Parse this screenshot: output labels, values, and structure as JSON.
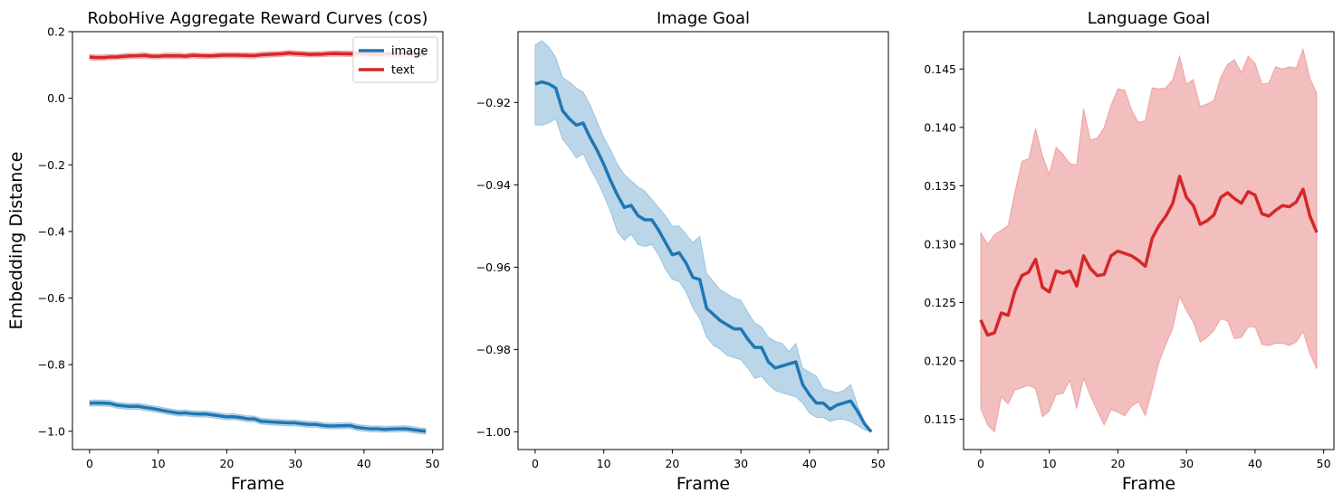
{
  "colors": {
    "image": "#1f77b4",
    "text": "#d62728",
    "image_band": "#1f77b4",
    "text_band": "#d62728"
  },
  "chart_data": [
    {
      "type": "line",
      "title": "RoboHive Aggregate Reward Curves (cos)",
      "xlabel": "Frame",
      "ylabel": "Embedding Distance",
      "xlim": [
        -2.5,
        51.5
      ],
      "ylim": [
        -1.055,
        0.2
      ],
      "xticks": [
        0,
        10,
        20,
        30,
        40,
        50
      ],
      "yticks": [
        -1.0,
        -0.8,
        -0.6,
        -0.4,
        -0.2,
        0.0,
        0.2
      ],
      "ytick_labels": [
        "−1.0",
        "−0.8",
        "−0.6",
        "−0.4",
        "−0.2",
        "0.0",
        "0.2"
      ],
      "legend": {
        "placement": "upper-right",
        "entries": [
          "image",
          "text"
        ]
      },
      "series": [
        {
          "name": "image",
          "color_key": "image",
          "x_start": 0,
          "mean": [
            -0.9155,
            -0.915,
            -0.9155,
            -0.9165,
            -0.922,
            -0.924,
            -0.9255,
            -0.925,
            -0.9285,
            -0.9315,
            -0.935,
            -0.939,
            -0.9425,
            -0.9455,
            -0.945,
            -0.9475,
            -0.9485,
            -0.9485,
            -0.951,
            -0.954,
            -0.957,
            -0.9565,
            -0.959,
            -0.9625,
            -0.963,
            -0.97,
            -0.9715,
            -0.973,
            -0.974,
            -0.975,
            -0.975,
            -0.9775,
            -0.9795,
            -0.9795,
            -0.983,
            -0.9845,
            -0.984,
            -0.9835,
            -0.983,
            -0.9885,
            -0.991,
            -0.993,
            -0.993,
            -0.9945,
            -0.9935,
            -0.993,
            -0.9925,
            -0.995,
            -0.998,
            -1.0
          ],
          "band": 0.009
        },
        {
          "name": "text",
          "color_key": "text",
          "x_start": 0,
          "mean": [
            0.1235,
            0.1222,
            0.1224,
            0.1241,
            0.1239,
            0.126,
            0.1273,
            0.1276,
            0.1287,
            0.1263,
            0.1259,
            0.1277,
            0.1275,
            0.1277,
            0.1264,
            0.129,
            0.1279,
            0.1273,
            0.1274,
            0.129,
            0.1294,
            0.1292,
            0.129,
            0.1286,
            0.1281,
            0.1305,
            0.1316,
            0.1324,
            0.1335,
            0.1358,
            0.134,
            0.1333,
            0.1317,
            0.132,
            0.1325,
            0.134,
            0.1344,
            0.1339,
            0.1335,
            0.1345,
            0.1342,
            0.1326,
            0.1324,
            0.1329,
            0.1333,
            0.1332,
            0.1336,
            0.1347,
            0.1324,
            0.131
          ],
          "band": 0.008
        }
      ]
    },
    {
      "type": "line",
      "title": "Image Goal",
      "xlabel": "Frame",
      "ylabel": "",
      "xlim": [
        -2.5,
        51.5
      ],
      "ylim": [
        -1.0043,
        -0.9028
      ],
      "xticks": [
        0,
        10,
        20,
        30,
        40,
        50
      ],
      "yticks": [
        -1.0,
        -0.98,
        -0.96,
        -0.94,
        -0.92
      ],
      "ytick_labels": [
        "−1.00",
        "−0.98",
        "−0.96",
        "−0.94",
        "−0.92"
      ],
      "series": [
        {
          "name": "image",
          "color_key": "image",
          "x_start": 0,
          "mean": [
            -0.9155,
            -0.915,
            -0.9155,
            -0.9165,
            -0.922,
            -0.924,
            -0.9255,
            -0.925,
            -0.9285,
            -0.9315,
            -0.935,
            -0.939,
            -0.9425,
            -0.9455,
            -0.945,
            -0.9475,
            -0.9485,
            -0.9485,
            -0.951,
            -0.954,
            -0.957,
            -0.9565,
            -0.959,
            -0.9625,
            -0.963,
            -0.97,
            -0.9715,
            -0.973,
            -0.974,
            -0.975,
            -0.975,
            -0.9775,
            -0.9795,
            -0.9795,
            -0.983,
            -0.9845,
            -0.984,
            -0.9835,
            -0.983,
            -0.9885,
            -0.991,
            -0.993,
            -0.993,
            -0.9945,
            -0.9935,
            -0.993,
            -0.9925,
            -0.995,
            -0.998,
            -1.0
          ],
          "upper": [
            -0.906,
            -0.905,
            -0.9065,
            -0.909,
            -0.914,
            -0.915,
            -0.9165,
            -0.9175,
            -0.9205,
            -0.9245,
            -0.9285,
            -0.9315,
            -0.935,
            -0.9375,
            -0.939,
            -0.9405,
            -0.9415,
            -0.9435,
            -0.9455,
            -0.9475,
            -0.95,
            -0.95,
            -0.952,
            -0.954,
            -0.9525,
            -0.9615,
            -0.9635,
            -0.9655,
            -0.9665,
            -0.9675,
            -0.968,
            -0.971,
            -0.9735,
            -0.9745,
            -0.977,
            -0.978,
            -0.9785,
            -0.9805,
            -0.9785,
            -0.9845,
            -0.9855,
            -0.9865,
            -0.9895,
            -0.99,
            -0.9905,
            -0.99,
            -0.9885,
            -0.9935,
            -0.9975,
            -1.0
          ],
          "lower": [
            -0.9255,
            -0.9255,
            -0.925,
            -0.924,
            -0.929,
            -0.931,
            -0.9335,
            -0.9325,
            -0.936,
            -0.939,
            -0.9425,
            -0.9465,
            -0.9515,
            -0.9535,
            -0.952,
            -0.9545,
            -0.955,
            -0.9545,
            -0.957,
            -0.9605,
            -0.963,
            -0.9635,
            -0.966,
            -0.97,
            -0.9725,
            -0.977,
            -0.979,
            -0.98,
            -0.9815,
            -0.982,
            -0.9825,
            -0.9845,
            -0.987,
            -0.9865,
            -0.9885,
            -0.99,
            -0.9905,
            -0.991,
            -0.9915,
            -0.993,
            -0.9955,
            -0.9965,
            -0.9965,
            -0.9975,
            -0.997,
            -0.997,
            -0.9975,
            -0.9985,
            -0.9995,
            -1.0
          ]
        }
      ]
    },
    {
      "type": "line",
      "title": "Language Goal",
      "xlabel": "Frame",
      "ylabel": "",
      "xlim": [
        -2.5,
        51.5
      ],
      "ylim": [
        0.1124,
        0.1482
      ],
      "xticks": [
        0,
        10,
        20,
        30,
        40,
        50
      ],
      "yticks": [
        0.115,
        0.12,
        0.125,
        0.13,
        0.135,
        0.14,
        0.145
      ],
      "ytick_labels": [
        "0.115",
        "0.120",
        "0.125",
        "0.130",
        "0.135",
        "0.140",
        "0.145"
      ],
      "series": [
        {
          "name": "text",
          "color_key": "text",
          "x_start": 0,
          "mean": [
            0.1235,
            0.1222,
            0.1224,
            0.1241,
            0.1239,
            0.126,
            0.1273,
            0.1276,
            0.1287,
            0.1263,
            0.1259,
            0.1277,
            0.1275,
            0.1277,
            0.1264,
            0.129,
            0.1279,
            0.1273,
            0.1274,
            0.129,
            0.1294,
            0.1292,
            0.129,
            0.1286,
            0.1281,
            0.1305,
            0.1316,
            0.1324,
            0.1335,
            0.1358,
            0.134,
            0.1333,
            0.1317,
            0.132,
            0.1325,
            0.134,
            0.1344,
            0.1339,
            0.1335,
            0.1345,
            0.1342,
            0.1326,
            0.1324,
            0.1329,
            0.1333,
            0.1332,
            0.1336,
            0.1347,
            0.1324,
            0.131
          ],
          "upper": [
            0.131,
            0.13,
            0.1308,
            0.1312,
            0.1316,
            0.1345,
            0.1371,
            0.1373,
            0.1399,
            0.1376,
            0.136,
            0.1383,
            0.1377,
            0.1369,
            0.1368,
            0.1416,
            0.1389,
            0.1391,
            0.14,
            0.1419,
            0.1433,
            0.1432,
            0.1415,
            0.1404,
            0.1406,
            0.1434,
            0.1433,
            0.1434,
            0.1441,
            0.1461,
            0.1437,
            0.1441,
            0.1418,
            0.142,
            0.1423,
            0.1443,
            0.1454,
            0.1458,
            0.1447,
            0.1461,
            0.1455,
            0.1437,
            0.1438,
            0.1452,
            0.145,
            0.1452,
            0.1451,
            0.1467,
            0.1442,
            0.1429
          ],
          "lower": [
            0.1159,
            0.1145,
            0.1139,
            0.1169,
            0.1163,
            0.1175,
            0.1177,
            0.1179,
            0.1176,
            0.1152,
            0.1157,
            0.1171,
            0.1172,
            0.1183,
            0.1159,
            0.1185,
            0.117,
            0.1157,
            0.1145,
            0.1158,
            0.1156,
            0.1153,
            0.1161,
            0.1165,
            0.1153,
            0.1175,
            0.1199,
            0.1214,
            0.1228,
            0.1255,
            0.1243,
            0.1233,
            0.1216,
            0.122,
            0.1226,
            0.1236,
            0.1234,
            0.1219,
            0.122,
            0.1229,
            0.1229,
            0.1214,
            0.1213,
            0.1215,
            0.1215,
            0.1213,
            0.1216,
            0.1225,
            0.1206,
            0.1193
          ]
        }
      ]
    }
  ]
}
